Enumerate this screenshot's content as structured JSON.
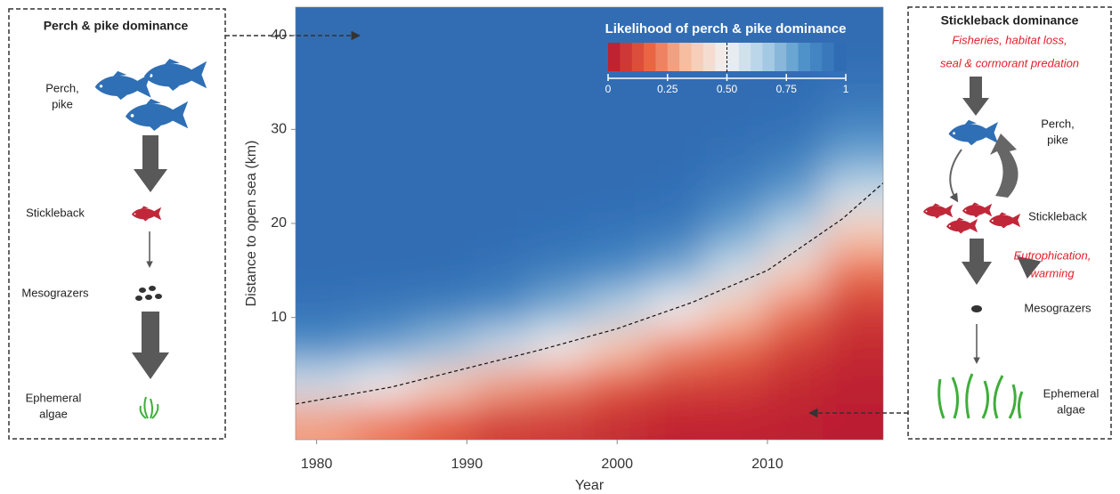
{
  "chart_data": {
    "type": "heatmap",
    "xlabel": "Year",
    "ylabel": "Distance to open sea (km)",
    "xlim": [
      1978.6,
      2017.7
    ],
    "ylim": [
      -3,
      43
    ],
    "xticks": [
      1980,
      1990,
      2000,
      2010
    ],
    "yticks": [
      10,
      20,
      30,
      40
    ],
    "x_edges": [
      1978.6,
      1982.5,
      1986.4,
      1990.3,
      1994.2,
      1998.1,
      2002,
      2005.9,
      2009.8,
      2013.7,
      2017.7
    ],
    "y_edges": [
      -3,
      1,
      5,
      9,
      13,
      17,
      21,
      25,
      29,
      33,
      37,
      41,
      43
    ],
    "z": [
      [
        0.27,
        0.21,
        0.15,
        0.09,
        0.08,
        0.05,
        0.03,
        0.03,
        0.02,
        0.01
      ],
      [
        0.58,
        0.5,
        0.39,
        0.28,
        0.23,
        0.15,
        0.1,
        0.09,
        0.04,
        0.02
      ],
      [
        0.84,
        0.79,
        0.71,
        0.6,
        0.49,
        0.36,
        0.24,
        0.19,
        0.1,
        0.04
      ],
      [
        0.95,
        0.93,
        0.9,
        0.85,
        0.75,
        0.64,
        0.5,
        0.36,
        0.21,
        0.09
      ],
      [
        0.97,
        0.97,
        0.97,
        0.95,
        0.9,
        0.85,
        0.76,
        0.58,
        0.39,
        0.19
      ],
      [
        0.97,
        0.97,
        0.97,
        0.97,
        0.96,
        0.94,
        0.91,
        0.77,
        0.61,
        0.36
      ],
      [
        0.97,
        0.97,
        0.97,
        0.97,
        0.97,
        0.97,
        0.96,
        0.89,
        0.79,
        0.58
      ],
      [
        0.97,
        0.97,
        0.97,
        0.97,
        0.97,
        0.97,
        0.97,
        0.95,
        0.9,
        0.77
      ],
      [
        0.97,
        0.97,
        0.97,
        0.97,
        0.97,
        0.97,
        0.97,
        0.97,
        0.96,
        0.89
      ],
      [
        0.97,
        0.97,
        0.97,
        0.97,
        0.97,
        0.97,
        0.97,
        0.97,
        0.97,
        0.95
      ],
      [
        0.97,
        0.97,
        0.97,
        0.97,
        0.97,
        0.97,
        0.97,
        0.97,
        0.97,
        0.97
      ],
      [
        0.97,
        0.97,
        0.97,
        0.97,
        0.97,
        0.97,
        0.97,
        0.97,
        0.97,
        0.97
      ]
    ],
    "colorscale": [
      "#b8172f",
      "#e8603f",
      "#f8c2a6",
      "#f2f2f2",
      "#a9cde4",
      "#4a8fc8",
      "#2a66b0"
    ],
    "colorbar": {
      "title": "Likelihood of perch & pike dominance",
      "lim": [
        0,
        1
      ],
      "ticks": [
        0,
        0.25,
        {
          "value": 0.5,
          "label": "0.50"
        },
        0.75,
        1
      ]
    },
    "contour": {
      "level": 0.5,
      "x": [
        1978.6,
        1985,
        1990,
        1995,
        2000,
        2005,
        2010,
        2015,
        2017.7
      ],
      "y": [
        0.8,
        2.6,
        4.6,
        6.6,
        8.8,
        11.6,
        15,
        20.5,
        24.3
      ]
    }
  },
  "panels": {
    "left": {
      "title": "Perch & pike dominance",
      "perch_pike": [
        "Perch,",
        "pike"
      ],
      "stickleback": "Stickleback",
      "mesograzers": "Mesograzers",
      "algae": [
        "Ephemeral",
        "algae"
      ]
    },
    "right": {
      "title": "Stickleback dominance",
      "pressures": [
        "Fisheries, habitat loss,",
        "seal & cormorant predation"
      ],
      "perch_pike": [
        "Perch,",
        "pike"
      ],
      "stickleback": "Stickleback",
      "drivers": [
        "Eutrophication,",
        "warming"
      ],
      "mesograzers": "Mesograzers",
      "algae": [
        "Ephemeral",
        "algae"
      ]
    }
  }
}
